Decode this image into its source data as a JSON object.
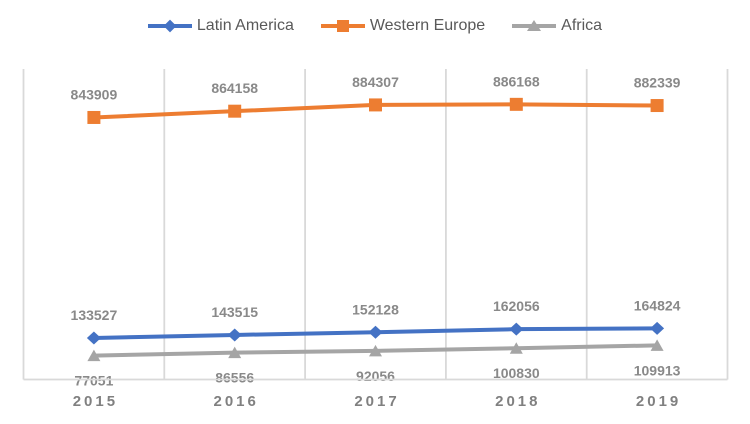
{
  "colors": {
    "background": "#FFFFFF",
    "gridline": "#D9D9D9",
    "axis_line": "#D9D9D9",
    "data_label": "#898989",
    "tick_label": "#808080",
    "legend_text": "#595959",
    "latin_america": "#4472C4",
    "western_europe": "#ED7D31",
    "africa": "#A5A5A5"
  },
  "chart_data": {
    "type": "line",
    "title": "",
    "xlabel": "",
    "ylabel": "",
    "categories": [
      "2015",
      "2016",
      "2017",
      "2018",
      "2019"
    ],
    "ylim": [
      0,
      1000000
    ],
    "grid": "vertical-category-boundaries",
    "legend_position": "top-center",
    "data_labels": "shown",
    "series": [
      {
        "name": "Latin America",
        "color": "#4472C4",
        "marker": "diamond",
        "label_position": "above",
        "values": [
          133527,
          143515,
          152128,
          162056,
          164824
        ]
      },
      {
        "name": "Western Europe",
        "color": "#ED7D31",
        "marker": "square",
        "label_position": "above",
        "values": [
          843909,
          864158,
          884307,
          886168,
          882339
        ]
      },
      {
        "name": "Africa",
        "color": "#A5A5A5",
        "marker": "triangle",
        "label_position": "below",
        "values": [
          77051,
          86556,
          92056,
          100830,
          109913
        ]
      }
    ]
  }
}
